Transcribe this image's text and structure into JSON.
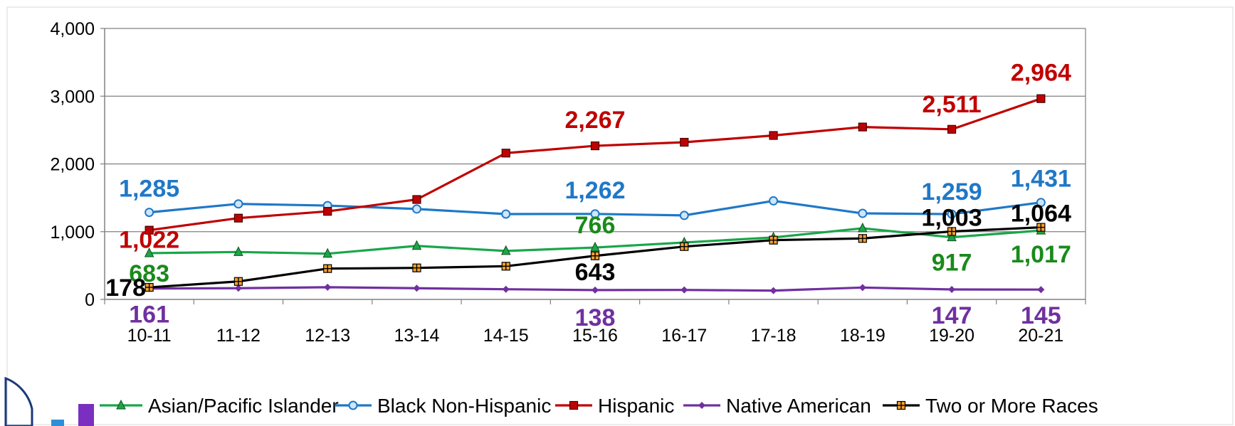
{
  "chart_data": {
    "type": "line",
    "title": "",
    "xlabel": "",
    "ylabel": "",
    "ylim": [
      0,
      4000
    ],
    "yticks": [
      0,
      1000,
      2000,
      3000,
      4000
    ],
    "ytick_labels": [
      "0",
      "1,000",
      "2,000",
      "3,000",
      "4,000"
    ],
    "grid": "horizontal",
    "legend_position": "bottom",
    "categories": [
      "10-11",
      "11-12",
      "12-13",
      "13-14",
      "14-15",
      "15-16",
      "16-17",
      "17-18",
      "18-19",
      "19-20",
      "20-21"
    ],
    "series": [
      {
        "name": "Asian/Pacific Islander",
        "color": "#1aa64a",
        "label_color": "#1a8a1a",
        "marker": "triangle",
        "values": [
          683,
          700,
          675,
          790,
          715,
          766,
          840,
          915,
          1050,
          917,
          1017
        ],
        "data_labels": [
          {
            "index": 0,
            "text": "683"
          },
          {
            "index": 5,
            "text": "766"
          },
          {
            "index": 9,
            "text": "917"
          },
          {
            "index": 10,
            "text": "1,017"
          }
        ]
      },
      {
        "name": "Black Non-Hispanic",
        "color": "#1f78c8",
        "label_color": "#1f78c8",
        "marker": "circle",
        "values": [
          1285,
          1410,
          1385,
          1335,
          1260,
          1262,
          1240,
          1455,
          1270,
          1259,
          1431
        ],
        "data_labels": [
          {
            "index": 0,
            "text": "1,285"
          },
          {
            "index": 5,
            "text": "1,262"
          },
          {
            "index": 9,
            "text": "1,259"
          },
          {
            "index": 10,
            "text": "1,431"
          }
        ]
      },
      {
        "name": "Hispanic",
        "color": "#c00000",
        "label_color": "#c00000",
        "marker": "square",
        "values": [
          1022,
          1200,
          1300,
          1475,
          2160,
          2267,
          2320,
          2420,
          2545,
          2511,
          2964
        ],
        "data_labels": [
          {
            "index": 0,
            "text": "1,022"
          },
          {
            "index": 5,
            "text": "2,267"
          },
          {
            "index": 9,
            "text": "2,511"
          },
          {
            "index": 10,
            "text": "2,964"
          }
        ]
      },
      {
        "name": "Native American",
        "color": "#7030a0",
        "label_color": "#7030a0",
        "marker": "diamond",
        "values": [
          161,
          165,
          180,
          165,
          150,
          138,
          140,
          130,
          175,
          147,
          145
        ],
        "data_labels": [
          {
            "index": 0,
            "text": "161"
          },
          {
            "index": 5,
            "text": "138"
          },
          {
            "index": 9,
            "text": "147"
          },
          {
            "index": 10,
            "text": "145"
          }
        ]
      },
      {
        "name": "Two or More Races",
        "color": "#000000",
        "label_color": "#000000",
        "marker": "plus-square",
        "values": [
          178,
          265,
          455,
          465,
          490,
          643,
          780,
          875,
          900,
          1003,
          1064
        ],
        "data_labels": [
          {
            "index": 0,
            "text": "178"
          },
          {
            "index": 5,
            "text": "643"
          },
          {
            "index": 9,
            "text": "1,003"
          },
          {
            "index": 10,
            "text": "1,064"
          }
        ]
      }
    ]
  }
}
